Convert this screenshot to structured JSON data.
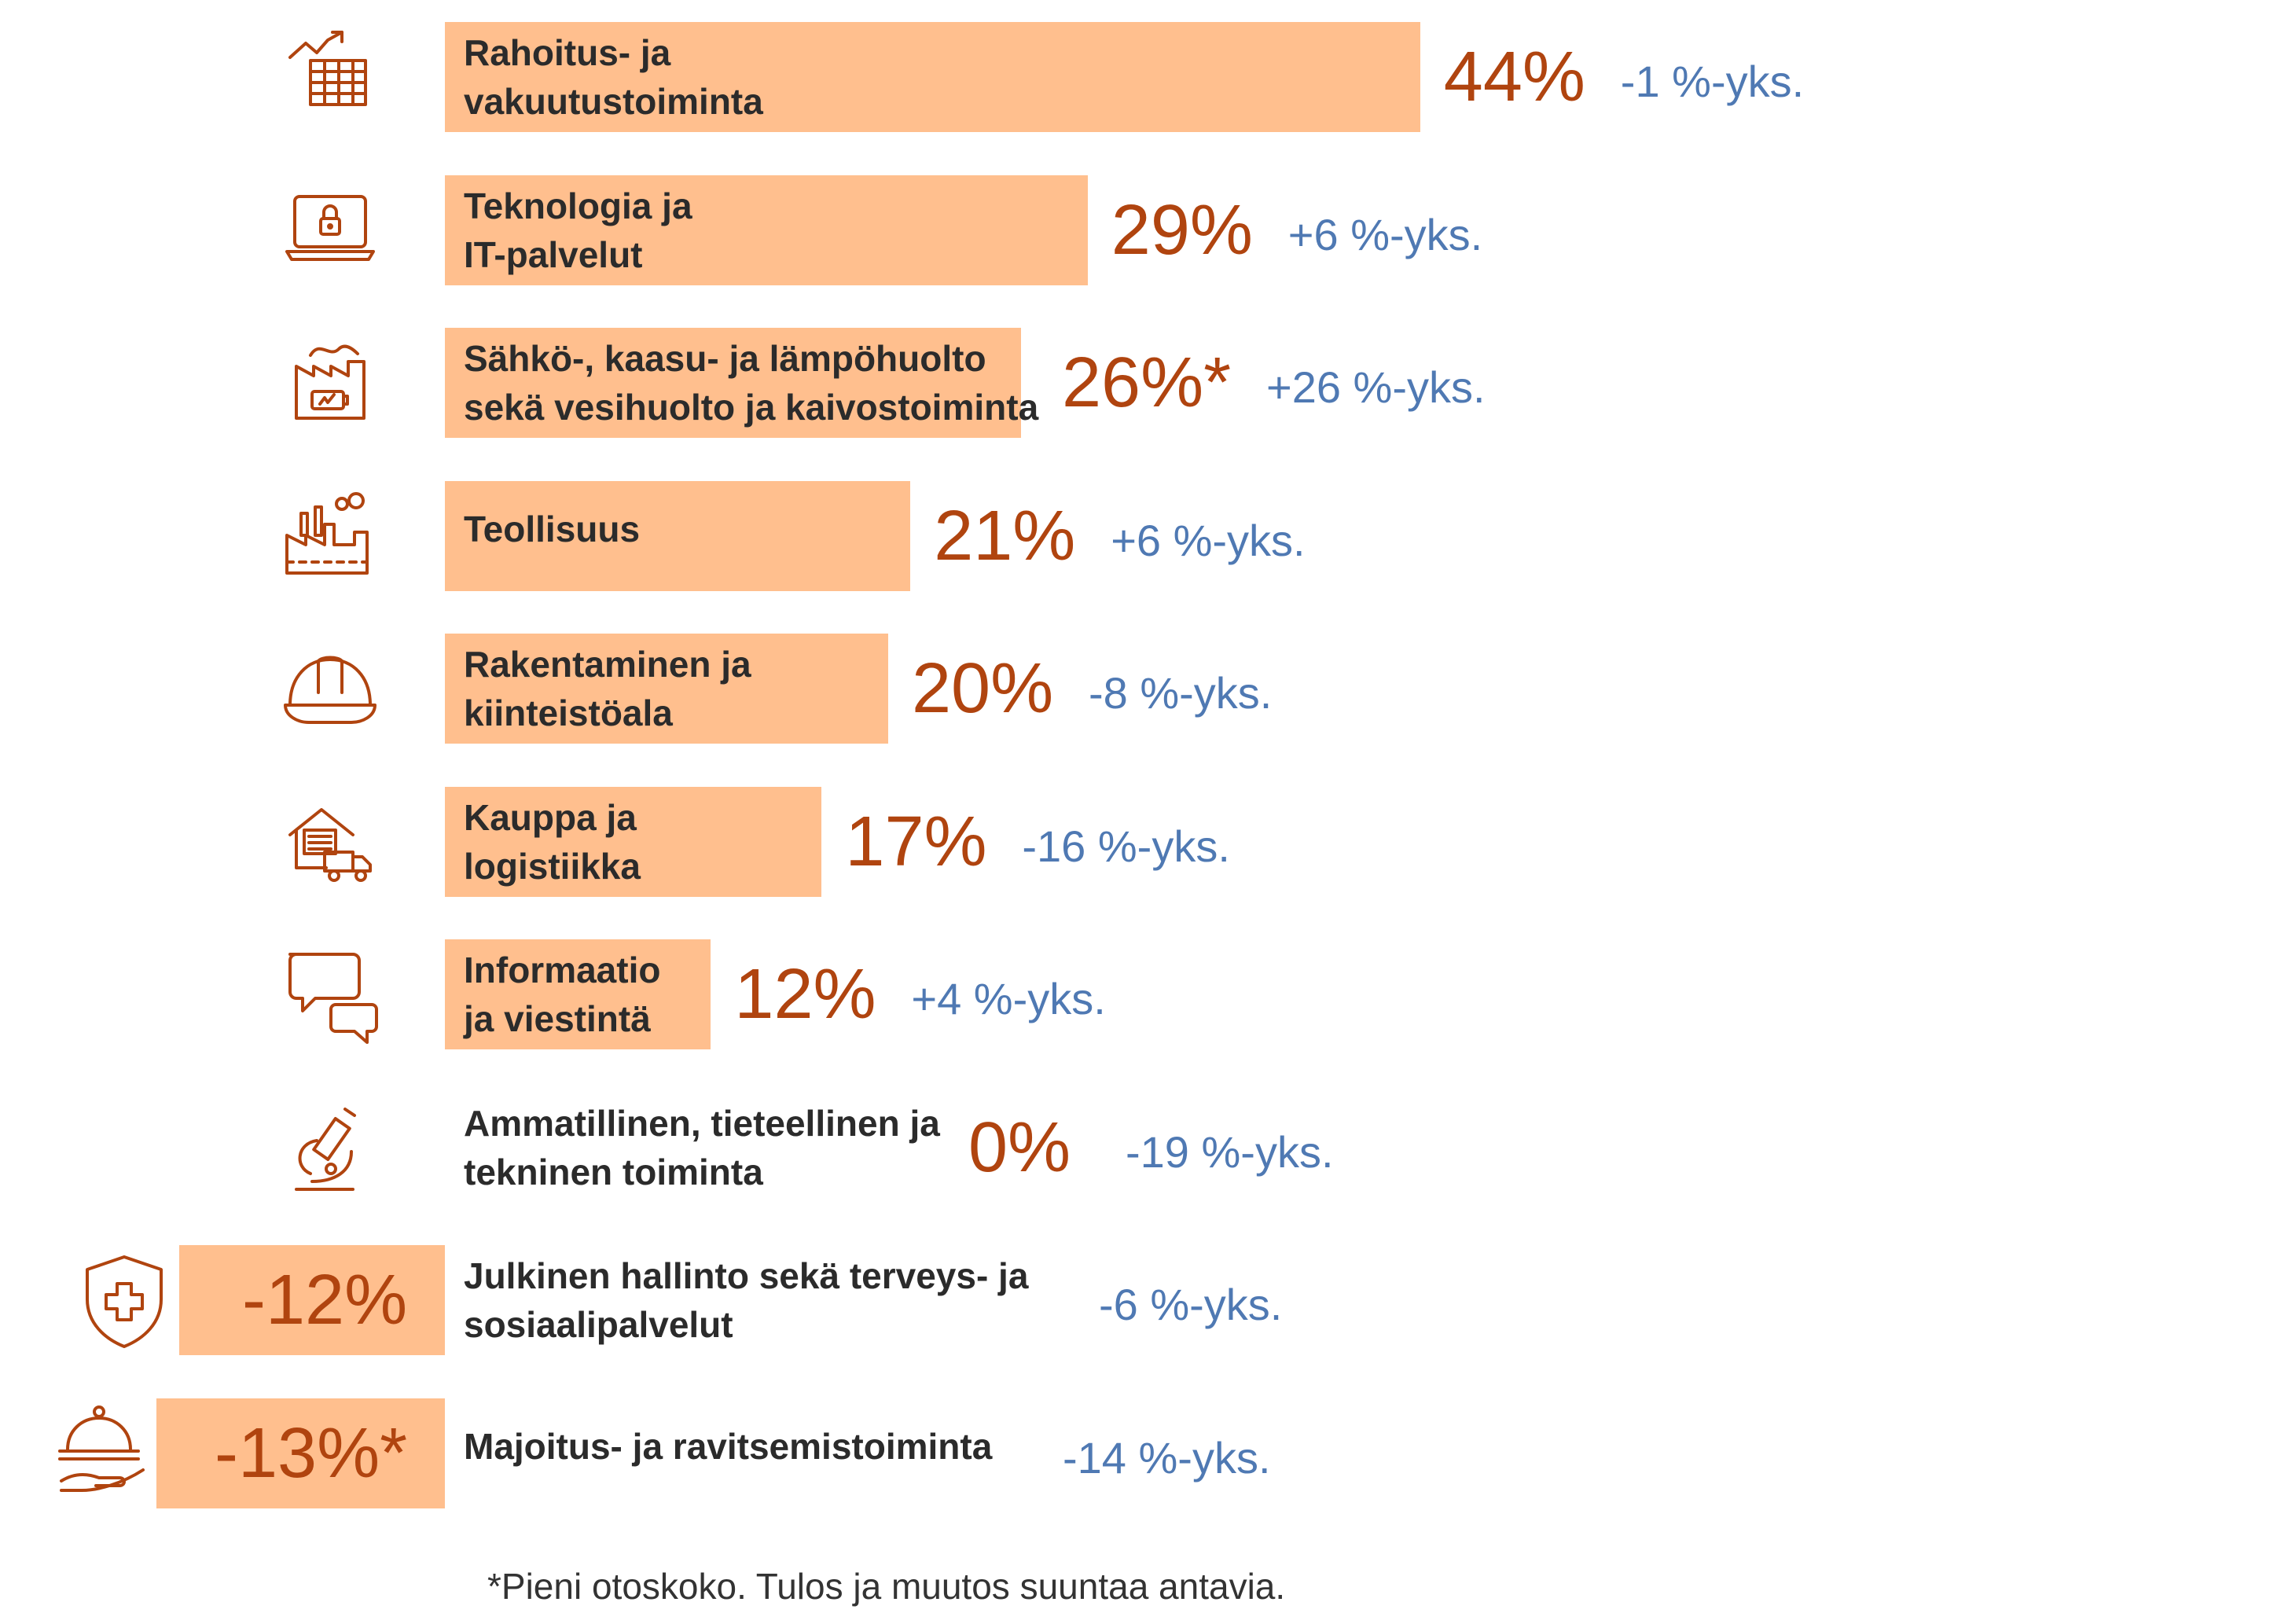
{
  "colors": {
    "bar": "#FFBF8E",
    "value_text": "#B0440F",
    "change_text": "#4F79B3",
    "label_text": "#2b2b2b",
    "icon_stroke": "#B0440F",
    "footnote_text": "#333333"
  },
  "chart_data": {
    "type": "bar",
    "orientation": "horizontal",
    "categories": [
      "Rahoitus- ja\nvakuutustoiminta",
      "Teknologia ja\nIT-palvelut",
      "Sähkö-, kaasu- ja lämpöhuolto\nsekä vesihuolto ja kaivostoiminta",
      "Teollisuus",
      "Rakentaminen ja\nkiinteistöala",
      "Kauppa ja\nlogistiikka",
      "Informaatio\nja viestintä",
      "Ammatillinen, tieteellinen ja\ntekninen toiminta",
      "Julkinen hallinto sekä terveys- ja\nsosiaalipalvelut",
      "Majoitus- ja ravitsemistoiminta"
    ],
    "values": [
      44,
      29,
      26,
      21,
      20,
      17,
      12,
      0,
      -12,
      -13
    ],
    "value_labels": [
      "44%",
      "29%",
      "26%*",
      "21%",
      "20%",
      "17%",
      "12%",
      "0%",
      "-12%",
      "-13%*"
    ],
    "changes": [
      "-1 %-yks.",
      "+6 %-yks.",
      "+26 %-yks.",
      "+6 %-yks.",
      "-8 %-yks.",
      "-16 %-yks.",
      "+4 %-yks.",
      "-19 %-yks.",
      "-6 %-yks.",
      "-14 %-yks."
    ],
    "icons": [
      "finance-chart-icon",
      "laptop-lock-icon",
      "energy-factory-icon",
      "factory-icon",
      "hard-hat-icon",
      "warehouse-truck-icon",
      "chat-bubbles-icon",
      "microscope-icon",
      "shield-cross-icon",
      "food-cloche-icon"
    ],
    "footnote": "*Pieni otoskoko. Tulos ja muutos suuntaa antavia."
  }
}
